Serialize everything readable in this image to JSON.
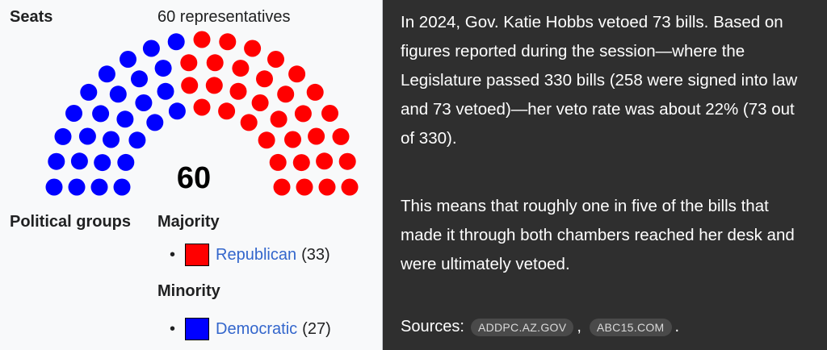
{
  "infobox": {
    "seats_label": "Seats",
    "seats_value": "60 representatives",
    "total": "60",
    "political_groups_label": "Political groups",
    "majority_label": "Majority",
    "minority_label": "Minority",
    "parties": [
      {
        "name": "Republican",
        "count": "(33)",
        "seats": 33,
        "color": "#ff0000"
      },
      {
        "name": "Democratic",
        "count": "(27)",
        "seats": 27,
        "color": "#0000ff"
      }
    ],
    "link_color": "#3366cc"
  },
  "answer": {
    "paragraph1": "In 2024, Gov. Katie Hobbs vetoed 73 bills. Based on figures reported during the session—where the Legislature passed 330 bills (258 were signed into law and 73 vetoed)—her veto rate was about 22% (73 out of 330).",
    "paragraph2": "This means that roughly one in five of the bills that made it through both chambers reached her desk and were ultimately vetoed.",
    "sources_label": "Sources:",
    "sources": [
      "ADDPC.AZ.GOV",
      "ABC15.COM"
    ],
    "separator": ",",
    "end": "."
  }
}
